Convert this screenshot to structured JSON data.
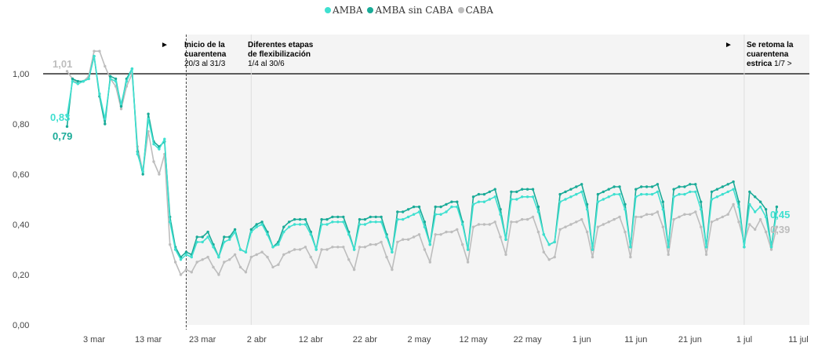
{
  "chart_data": {
    "type": "line",
    "ylim": [
      0,
      1.1
    ],
    "ytick_labels": [
      "0,00",
      "0,20",
      "0,40",
      "0,60",
      "0,80",
      "1,00"
    ],
    "yticks": [
      0,
      0.2,
      0.4,
      0.6,
      0.8,
      1.0
    ],
    "x_start": "2020-02-27",
    "x_end": "2020-07-11",
    "xticks": [
      {
        "date": "2020-03-03",
        "label": "3 mar"
      },
      {
        "date": "2020-03-13",
        "label": "13 mar"
      },
      {
        "date": "2020-03-23",
        "label": "23 mar"
      },
      {
        "date": "2020-04-02",
        "label": "2 abr"
      },
      {
        "date": "2020-04-12",
        "label": "12 abr"
      },
      {
        "date": "2020-04-22",
        "label": "22 abr"
      },
      {
        "date": "2020-05-02",
        "label": "2 may"
      },
      {
        "date": "2020-05-12",
        "label": "12 may"
      },
      {
        "date": "2020-05-22",
        "label": "22 may"
      },
      {
        "date": "2020-06-01",
        "label": "1 jun"
      },
      {
        "date": "2020-06-11",
        "label": "11 jun"
      },
      {
        "date": "2020-06-21",
        "label": "21 jun"
      },
      {
        "date": "2020-07-01",
        "label": "1 jul"
      },
      {
        "date": "2020-07-11",
        "label": "11 jul"
      }
    ],
    "reference_line": 1.0,
    "shaded_from": "2020-03-20",
    "markers": [
      {
        "date": "2020-03-20",
        "style": "dash"
      },
      {
        "date": "2020-04-01",
        "style": "faint"
      },
      {
        "date": "2020-07-01",
        "style": "faint"
      }
    ],
    "annotations": [
      {
        "arrow": "►",
        "title": "Inicio de la\ncuarentena",
        "sub": "20/3 al 31/3"
      },
      {
        "title": "Diferentes etapas\nde flexibilización",
        "sub": "1/4 al 30/6"
      },
      {
        "arrow": "►",
        "title": "Se retoma la\ncuarentena\nestrica",
        "sub": " 1/7 >"
      }
    ],
    "series": [
      {
        "name": "AMBA",
        "color": "#3fe0d0",
        "values": [
          0.83,
          0.97,
          0.96,
          0.97,
          0.98,
          1.07,
          0.92,
          0.82,
          0.98,
          0.97,
          0.88,
          0.97,
          1.02,
          0.68,
          0.61,
          0.82,
          0.72,
          0.7,
          0.74,
          0.41,
          0.3,
          0.26,
          0.28,
          0.27,
          0.33,
          0.33,
          0.35,
          0.31,
          0.27,
          0.33,
          0.34,
          0.37,
          0.3,
          0.29,
          0.37,
          0.39,
          0.4,
          0.36,
          0.31,
          0.32,
          0.37,
          0.39,
          0.4,
          0.4,
          0.4,
          0.36,
          0.3,
          0.4,
          0.4,
          0.41,
          0.41,
          0.41,
          0.36,
          0.3,
          0.4,
          0.4,
          0.41,
          0.41,
          0.41,
          0.35,
          0.29,
          0.42,
          0.42,
          0.43,
          0.44,
          0.45,
          0.39,
          0.32,
          0.44,
          0.44,
          0.45,
          0.47,
          0.47,
          0.4,
          0.3,
          0.48,
          0.49,
          0.49,
          0.5,
          0.51,
          0.44,
          0.34,
          0.5,
          0.5,
          0.51,
          0.51,
          0.51,
          0.45,
          0.36,
          0.32,
          0.33,
          0.49,
          0.5,
          0.51,
          0.52,
          0.53,
          0.46,
          0.3,
          0.49,
          0.5,
          0.51,
          0.52,
          0.52,
          0.46,
          0.31,
          0.51,
          0.52,
          0.52,
          0.52,
          0.53,
          0.46,
          0.31,
          0.51,
          0.52,
          0.52,
          0.53,
          0.53,
          0.46,
          0.31,
          0.5,
          0.51,
          0.52,
          0.53,
          0.54,
          0.47,
          0.31,
          0.48,
          0.45,
          0.47,
          0.43,
          0.31,
          0.45
        ]
      },
      {
        "name": "AMBA sin CABA",
        "color": "#1aab98",
        "values": [
          0.79,
          0.98,
          0.97,
          0.97,
          0.98,
          1.07,
          0.91,
          0.8,
          0.99,
          0.98,
          0.87,
          0.98,
          1.02,
          0.69,
          0.6,
          0.84,
          0.73,
          0.71,
          0.73,
          0.43,
          0.31,
          0.27,
          0.29,
          0.28,
          0.35,
          0.35,
          0.37,
          0.32,
          0.27,
          0.35,
          0.35,
          0.38,
          0.3,
          0.29,
          0.38,
          0.4,
          0.41,
          0.37,
          0.31,
          0.33,
          0.39,
          0.41,
          0.42,
          0.42,
          0.42,
          0.37,
          0.3,
          0.42,
          0.42,
          0.43,
          0.43,
          0.43,
          0.37,
          0.3,
          0.42,
          0.42,
          0.43,
          0.43,
          0.43,
          0.36,
          0.29,
          0.45,
          0.45,
          0.46,
          0.47,
          0.47,
          0.41,
          0.32,
          0.47,
          0.47,
          0.48,
          0.49,
          0.49,
          0.41,
          0.3,
          0.51,
          0.52,
          0.52,
          0.53,
          0.54,
          0.46,
          0.34,
          0.53,
          0.53,
          0.54,
          0.54,
          0.54,
          0.47,
          0.36,
          0.32,
          0.33,
          0.52,
          0.53,
          0.54,
          0.55,
          0.56,
          0.48,
          0.3,
          0.52,
          0.53,
          0.54,
          0.55,
          0.55,
          0.48,
          0.31,
          0.54,
          0.55,
          0.55,
          0.55,
          0.56,
          0.49,
          0.31,
          0.54,
          0.55,
          0.55,
          0.56,
          0.56,
          0.49,
          0.31,
          0.53,
          0.54,
          0.55,
          0.56,
          0.57,
          0.49,
          0.31,
          0.53,
          0.51,
          0.49,
          0.46,
          0.31,
          0.47
        ]
      },
      {
        "name": "CABA",
        "color": "#bdbdbd",
        "values": [
          1.01,
          0.98,
          0.96,
          0.97,
          0.99,
          1.09,
          1.09,
          1.03,
          0.98,
          0.95,
          0.86,
          0.95,
          1.0,
          0.71,
          0.61,
          0.77,
          0.65,
          0.6,
          0.68,
          0.32,
          0.25,
          0.2,
          0.22,
          0.21,
          0.25,
          0.26,
          0.27,
          0.23,
          0.2,
          0.25,
          0.26,
          0.28,
          0.23,
          0.21,
          0.27,
          0.28,
          0.29,
          0.27,
          0.23,
          0.24,
          0.28,
          0.29,
          0.3,
          0.3,
          0.31,
          0.27,
          0.23,
          0.3,
          0.3,
          0.31,
          0.31,
          0.31,
          0.26,
          0.22,
          0.31,
          0.31,
          0.32,
          0.32,
          0.33,
          0.27,
          0.22,
          0.33,
          0.34,
          0.34,
          0.35,
          0.36,
          0.3,
          0.25,
          0.36,
          0.36,
          0.37,
          0.37,
          0.38,
          0.32,
          0.25,
          0.39,
          0.4,
          0.4,
          0.4,
          0.41,
          0.35,
          0.28,
          0.41,
          0.41,
          0.42,
          0.42,
          0.43,
          0.37,
          0.29,
          0.26,
          0.27,
          0.38,
          0.39,
          0.4,
          0.41,
          0.42,
          0.37,
          0.27,
          0.39,
          0.4,
          0.41,
          0.42,
          0.43,
          0.37,
          0.27,
          0.43,
          0.43,
          0.44,
          0.44,
          0.45,
          0.39,
          0.28,
          0.42,
          0.43,
          0.44,
          0.44,
          0.45,
          0.39,
          0.28,
          0.41,
          0.42,
          0.43,
          0.44,
          0.48,
          0.41,
          0.33,
          0.4,
          0.38,
          0.42,
          0.37,
          0.3,
          0.39
        ]
      }
    ],
    "start_labels": [
      {
        "text": "1,01",
        "series": "CABA"
      },
      {
        "text": "0,83",
        "series": "AMBA"
      },
      {
        "text": "0,79",
        "series": "AMBA sin CABA"
      }
    ],
    "end_labels": [
      {
        "text": "0,45",
        "series": "AMBA"
      },
      {
        "text": "0,39",
        "series": "CABA"
      }
    ]
  }
}
